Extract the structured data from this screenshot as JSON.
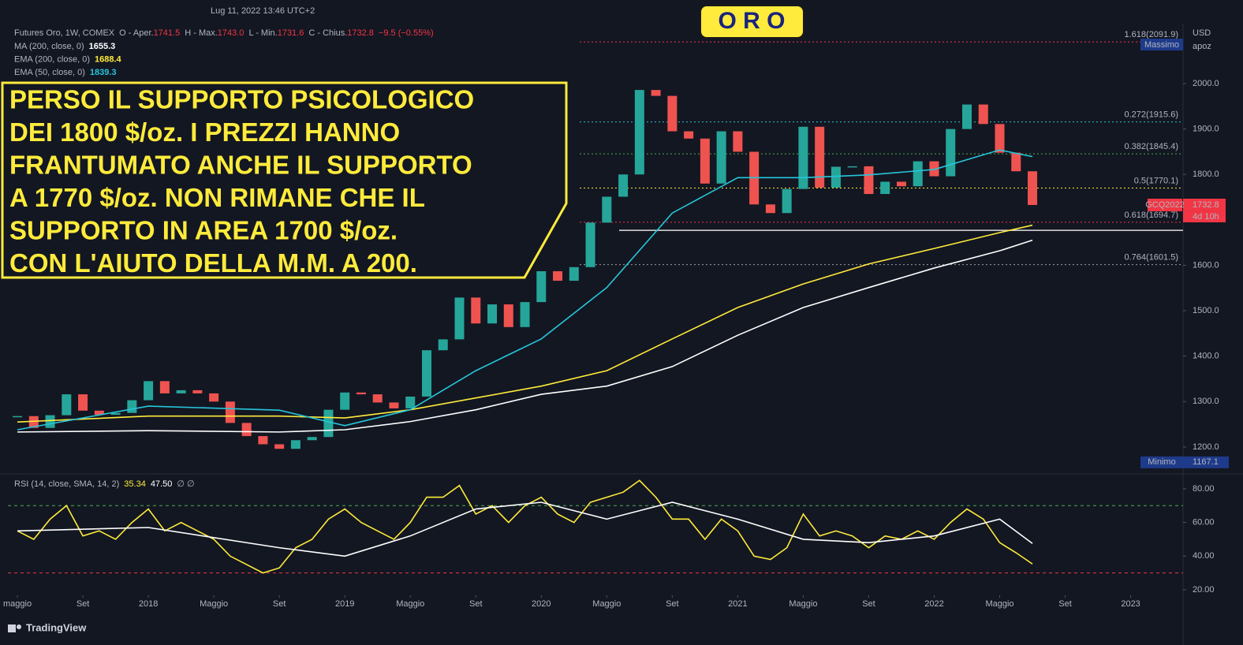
{
  "header": {
    "datetime": "Lug 11, 2022 13:46 UTC+2",
    "badge": "O R O",
    "brand": "TradingView"
  },
  "legend": {
    "symbol": "Futures Oro, 1W, COMEX",
    "ohlc": [
      "O - Aper.",
      "1741.5",
      "H - Max.",
      "1743.0",
      "L - Min.",
      "1731.6",
      "C - Chius.",
      "1732.8",
      "−9.5 (−0.55%)"
    ],
    "studies": [
      {
        "name": "MA (200, close, 0)",
        "value": "1655.3",
        "color": "#ffffff"
      },
      {
        "name": "EMA (200, close, 0)",
        "value": "1688.4",
        "color": "#ffeb3b"
      },
      {
        "name": "EMA (50, close, 0)",
        "value": "1839.3",
        "color": "#26c6da"
      }
    ]
  },
  "annotation": [
    "PERSO IL SUPPORTO PSICOLOGICO",
    "DEI 1800 $/oz. I PREZZI HANNO",
    "FRANTUMATO ANCHE IL SUPPORTO",
    "A 1770 $/oz. NON RIMANE CHE IL",
    "SUPPORTO IN AREA 1700 $/oz.",
    "CON L'AIUTO DELLA M.M. A 200."
  ],
  "chart_data": [
    {
      "type": "candlestick",
      "unit": "USD",
      "axis_note": "apoz",
      "up_color": "#26a69a",
      "down_color": "#ef5350",
      "x": [
        4,
        5,
        6,
        7,
        8,
        9,
        10,
        11,
        12,
        13,
        14,
        15,
        16,
        17,
        18,
        19,
        20,
        21,
        22,
        23,
        24,
        25,
        26,
        27,
        28,
        29,
        30,
        31,
        32,
        33,
        34,
        35,
        36,
        37,
        38,
        39,
        40,
        41,
        42,
        43,
        44,
        45,
        46,
        47,
        48,
        49,
        50,
        51,
        52,
        53,
        54,
        55,
        56,
        57,
        58,
        59,
        60,
        61,
        62,
        63,
        64,
        65,
        66
      ],
      "values": [
        1268,
        1242,
        1270,
        1316,
        1280,
        1271,
        1275,
        1303,
        1345,
        1318,
        1325,
        1318,
        1300,
        1253,
        1224,
        1206,
        1196,
        1215,
        1222,
        1282,
        1320,
        1316,
        1298,
        1285,
        1311,
        1413,
        1437,
        1529,
        1472,
        1514,
        1464,
        1519,
        1587,
        1566,
        1596,
        1694,
        1751,
        1800,
        1986,
        1973,
        1895,
        1879,
        1780,
        1895,
        1850,
        1734,
        1715,
        1768,
        1905,
        1771,
        1817,
        1818,
        1757,
        1784,
        1774,
        1829,
        1796,
        1900,
        1954,
        1911,
        1848,
        1807,
        1732.8
      ],
      "series": [
        {
          "name": "MA (200, close, 0)",
          "color": "#ffffff",
          "x": [
            4,
            12,
            20,
            24,
            28,
            32,
            36,
            40,
            44,
            48,
            52,
            56,
            60,
            64,
            66
          ],
          "values": [
            1233,
            1236,
            1233,
            1238,
            1256,
            1282,
            1316,
            1334,
            1377,
            1446,
            1507,
            1551,
            1594,
            1632,
            1655.3
          ]
        },
        {
          "name": "EMA (200, close, 0)",
          "color": "#ffeb3b",
          "x": [
            4,
            12,
            20,
            24,
            28,
            32,
            36,
            40,
            44,
            48,
            52,
            56,
            60,
            64,
            66
          ],
          "values": [
            1255,
            1268,
            1268,
            1264,
            1282,
            1308,
            1334,
            1368,
            1438,
            1507,
            1559,
            1603,
            1637,
            1672,
            1688.4
          ]
        },
        {
          "name": "EMA (50, close, 0)",
          "color": "#26c6da",
          "x": [
            4,
            12,
            20,
            24,
            28,
            32,
            36,
            40,
            44,
            48,
            52,
            56,
            60,
            64,
            66
          ],
          "values": [
            1238,
            1290,
            1281,
            1247,
            1282,
            1368,
            1438,
            1551,
            1715,
            1793,
            1793,
            1799,
            1811,
            1854,
            1839.3
          ]
        }
      ],
      "fib_levels": [
        {
          "label": "1.618(2091.9)",
          "value": 2091.9,
          "color": "#f23645"
        },
        {
          "label": "0.272(1915.6)",
          "value": 1915.6,
          "color": "#26c6da"
        },
        {
          "label": "0.382(1845.4)",
          "value": 1845.4,
          "color": "#4caf50"
        },
        {
          "label": "0.5(1770.1)",
          "value": 1770.1,
          "color": "#ffeb3b"
        },
        {
          "label": "0.618(1694.7)",
          "value": 1694.7,
          "color": "#f23645"
        },
        {
          "label": "0.764(1601.5)",
          "value": 1601.5,
          "color": "#9e9e9e"
        }
      ],
      "support_line": 1677,
      "max_label": "Massimo",
      "min_label": "Minimo",
      "min_value": 1167.1,
      "symbol_tag": "GCQ2022",
      "countdown": "4d 10h",
      "last_price": 1732.8,
      "xlim": [
        3.42,
        75.2
      ],
      "xticks": [
        {
          "value": 4,
          "label": "maggio"
        },
        {
          "value": 8,
          "label": "Set"
        },
        {
          "value": 12,
          "label": "2018"
        },
        {
          "value": 16,
          "label": "Maggio"
        },
        {
          "value": 20,
          "label": "Set"
        },
        {
          "value": 24,
          "label": "2019"
        },
        {
          "value": 28,
          "label": "Maggio"
        },
        {
          "value": 32,
          "label": "Set"
        },
        {
          "value": 36,
          "label": "2020"
        },
        {
          "value": 40,
          "label": "Maggio"
        },
        {
          "value": 44,
          "label": "Set"
        },
        {
          "value": 48,
          "label": "2021"
        },
        {
          "value": 52,
          "label": "Maggio"
        },
        {
          "value": 56,
          "label": "Set"
        },
        {
          "value": 60,
          "label": "2022"
        },
        {
          "value": 64,
          "label": "Maggio"
        },
        {
          "value": 68,
          "label": "Set"
        },
        {
          "value": 72,
          "label": "2023"
        }
      ],
      "ylim": [
        1146,
        2132
      ],
      "yticks": [
        {
          "value": 1200,
          "label": "1200.0"
        },
        {
          "value": 1300,
          "label": "1300.0"
        },
        {
          "value": 1400,
          "label": "1400.0"
        },
        {
          "value": 1500,
          "label": "1500.0"
        },
        {
          "value": 1600,
          "label": "1600.0"
        },
        {
          "value": 1700,
          "label": "1700.0"
        },
        {
          "value": 1800,
          "label": "1800.0"
        },
        {
          "value": 1900,
          "label": "1900.0"
        },
        {
          "value": 2000,
          "label": "2000.0"
        }
      ]
    },
    {
      "type": "line",
      "title": "RSI (14, close, SMA, 14, 2)",
      "readouts": [
        "35.34",
        "47.50",
        "∅ ∅"
      ],
      "series": [
        {
          "name": "RSI",
          "color": "#ffeb3b",
          "x": [
            4,
            5,
            6,
            7,
            8,
            9,
            10,
            11,
            12,
            13,
            14,
            15,
            16,
            17,
            18,
            19,
            20,
            21,
            22,
            23,
            24,
            25,
            26,
            27,
            28,
            29,
            30,
            31,
            32,
            33,
            34,
            35,
            36,
            37,
            38,
            39,
            40,
            41,
            42,
            43,
            44,
            45,
            46,
            47,
            48,
            49,
            50,
            51,
            52,
            53,
            54,
            55,
            56,
            57,
            58,
            59,
            60,
            61,
            62,
            63,
            64,
            65,
            66
          ],
          "values": [
            55,
            50,
            62,
            70,
            52,
            55,
            50,
            60,
            68,
            55,
            60,
            55,
            50,
            40,
            35,
            30,
            33,
            45,
            50,
            62,
            68,
            60,
            55,
            50,
            60,
            75,
            75,
            82,
            65,
            70,
            60,
            70,
            75,
            65,
            60,
            72,
            75,
            78,
            85,
            75,
            62,
            62,
            50,
            62,
            55,
            40,
            38,
            45,
            65,
            52,
            55,
            52,
            45,
            52,
            50,
            55,
            50,
            60,
            68,
            62,
            48,
            42,
            35.34
          ]
        },
        {
          "name": "SMA",
          "color": "#ffffff",
          "x": [
            4,
            12,
            20,
            24,
            28,
            32,
            36,
            40,
            44,
            48,
            52,
            56,
            60,
            64,
            66
          ],
          "values": [
            55,
            57,
            45,
            40,
            52,
            68,
            72,
            62,
            72,
            62,
            50,
            48,
            52,
            62,
            47.5
          ]
        }
      ],
      "levels": [
        {
          "value": 70,
          "color": "#4caf50"
        },
        {
          "value": 30,
          "color": "#f23645"
        }
      ],
      "ylim": [
        16.7,
        87
      ],
      "yticks": [
        {
          "value": 20,
          "label": "20.00"
        },
        {
          "value": 40,
          "label": "40.00"
        },
        {
          "value": 60,
          "label": "60.00"
        },
        {
          "value": 80,
          "label": "80.00"
        }
      ]
    }
  ]
}
